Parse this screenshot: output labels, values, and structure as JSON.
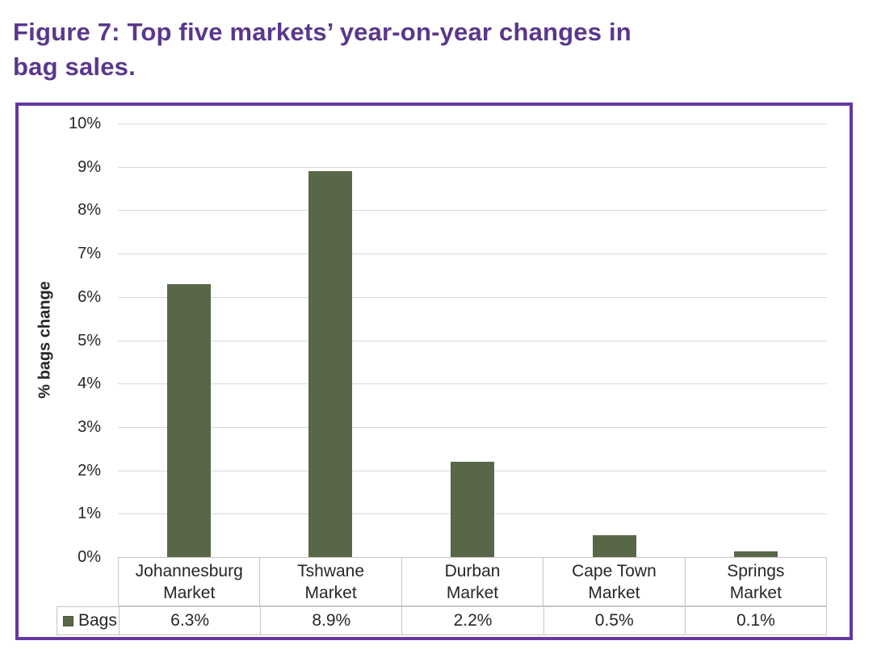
{
  "title": {
    "line1": "Figure 7: Top five markets’ year-on-year changes in",
    "line2": "bag sales."
  },
  "chart_data": {
    "type": "bar",
    "title": "Figure 7: Top five markets’ year-on-year changes in bag sales.",
    "series_name": "Bags",
    "categories": [
      "Johannesburg Market",
      "Tshwane Market",
      "Durban Market",
      "Cape Town Market",
      "Springs Market"
    ],
    "category_lines": [
      [
        "Johannesburg",
        "Market"
      ],
      [
        "Tshwane",
        "Market"
      ],
      [
        "Durban",
        "Market"
      ],
      [
        "Cape Town",
        "Market"
      ],
      [
        "Springs",
        "Market"
      ]
    ],
    "values": [
      6.3,
      8.9,
      2.2,
      0.5,
      0.1
    ],
    "value_labels": [
      "6.3%",
      "8.9%",
      "2.2%",
      "0.5%",
      "0.1%"
    ],
    "xlabel": "",
    "ylabel": "% bags change",
    "ylim": [
      0,
      10
    ],
    "ytick_step": 1,
    "ytick_labels": [
      "0%",
      "1%",
      "2%",
      "3%",
      "4%",
      "5%",
      "6%",
      "7%",
      "8%",
      "9%",
      "10%"
    ],
    "grid": true,
    "legend_position": "table-left-cell",
    "bar_color": "#586748"
  },
  "colors": {
    "title_purple": "#5a378c",
    "frame_purple": "#6438a0",
    "bar_green": "#586748",
    "gridline_gray": "#d9d9d9",
    "table_border_gray": "#c6c6c6",
    "text_dark": "#262626"
  }
}
